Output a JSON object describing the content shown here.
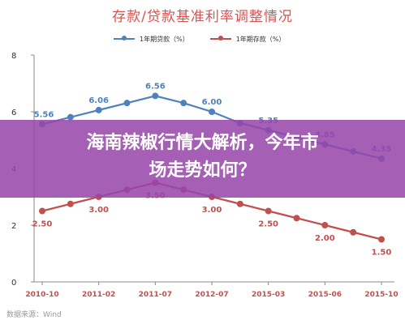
{
  "chart_data": {
    "type": "line",
    "title": "存款/贷款基准利率调整情况",
    "x_ticks": [
      "2010-10",
      "2011-02",
      "2011-07",
      "2012-07",
      "2015-03",
      "2015-06",
      "2015-10"
    ],
    "ylim": [
      0,
      8
    ],
    "y_ticks": [
      "0",
      "2",
      "4",
      "6",
      "8"
    ],
    "grid": false,
    "legend_position": "top",
    "series": [
      {
        "name": "1年期贷款（%）",
        "color": "#4f81bd",
        "values": [
          5.56,
          5.81,
          6.06,
          6.31,
          6.56,
          6.31,
          6.0,
          5.6,
          5.35,
          5.1,
          4.85,
          4.6,
          4.35
        ],
        "labels": [
          "5.56",
          "",
          "6.06",
          "",
          "6.56",
          "",
          "6.00",
          "",
          "5.35",
          "",
          "4.85",
          "",
          "4.35"
        ]
      },
      {
        "name": "1年期存款（%）",
        "color": "#c0504d",
        "values": [
          2.5,
          2.75,
          3.0,
          3.25,
          3.5,
          3.25,
          3.0,
          2.75,
          2.5,
          2.25,
          2.0,
          1.75,
          1.5
        ],
        "labels": [
          "2.50",
          "",
          "3.00",
          "",
          "3.50",
          "",
          "3.00",
          "",
          "2.50",
          "",
          "2.00",
          "",
          "1.50"
        ]
      }
    ]
  },
  "overlay": {
    "line1": "海南辣椒行情大解析，今年市",
    "line2": "场走势如何？"
  },
  "source": "数据来源：Wind"
}
